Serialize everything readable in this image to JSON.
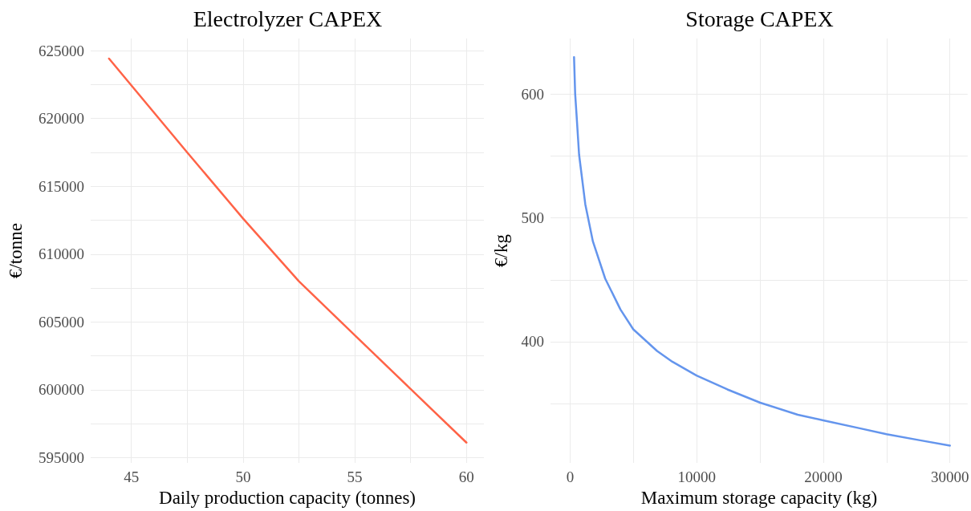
{
  "chart_data": [
    {
      "type": "line",
      "title": "Electrolyzer CAPEX",
      "xlabel": "Daily production capacity (tonnes)",
      "ylabel": "€/tonne",
      "x": [
        44,
        47.5,
        50,
        52.5,
        55,
        57.5,
        60
      ],
      "series": [
        {
          "color": "#ff6347",
          "values": [
            624420,
            617500,
            612630,
            608000,
            604020,
            600050,
            596100
          ]
        }
      ],
      "xlim": [
        43.18,
        60.78
      ],
      "xticks": [
        45,
        {
          "value": 47.5,
          "label": null
        },
        50,
        {
          "value": 52.5,
          "label": null
        },
        55,
        {
          "value": 57.5,
          "label": null
        },
        60
      ],
      "ylim": [
        594600,
        625900
      ],
      "yticks": [
        595000,
        {
          "value": 597500,
          "label": null
        },
        600000,
        {
          "value": 602500,
          "label": null
        },
        605000,
        {
          "value": 607500,
          "label": null
        },
        610000,
        {
          "value": 612500,
          "label": null
        },
        615000,
        {
          "value": 617500,
          "label": null
        },
        620000,
        {
          "value": 622500,
          "label": null
        },
        625000
      ],
      "grid": true,
      "line_style": "solid",
      "marker": "none"
    },
    {
      "type": "line",
      "title": "Storage CAPEX",
      "xlabel": "Maximum storage capacity (kg)",
      "ylabel": "€/kg",
      "x": [
        300,
        390,
        500,
        700,
        1190,
        1790,
        2760,
        3970,
        4980,
        6860,
        8070,
        9980,
        12420,
        15010,
        17980,
        19990,
        22800,
        24990,
        27650,
        30000
      ],
      "series": [
        {
          "color": "#6495ed",
          "values": [
            630,
            600,
            583,
            551,
            511,
            481,
            451,
            426,
            410,
            392.5,
            383.8,
            372.6,
            361.4,
            350.7,
            341,
            336.4,
            330.2,
            325.3,
            320.3,
            316
          ]
        }
      ],
      "xlim": [
        -1560,
        31400
      ],
      "xticks": [
        0,
        {
          "value": 5000,
          "label": null
        },
        10000,
        {
          "value": 15000,
          "label": null
        },
        20000,
        {
          "value": 25000,
          "label": null
        },
        30000
      ],
      "ylim": [
        302,
        645
      ],
      "yticks": [
        {
          "value": 350,
          "label": null
        },
        400,
        {
          "value": 450,
          "label": null
        },
        500,
        {
          "value": 550,
          "label": null
        },
        600
      ],
      "grid": true,
      "line_style": "solid",
      "marker": "none"
    }
  ]
}
